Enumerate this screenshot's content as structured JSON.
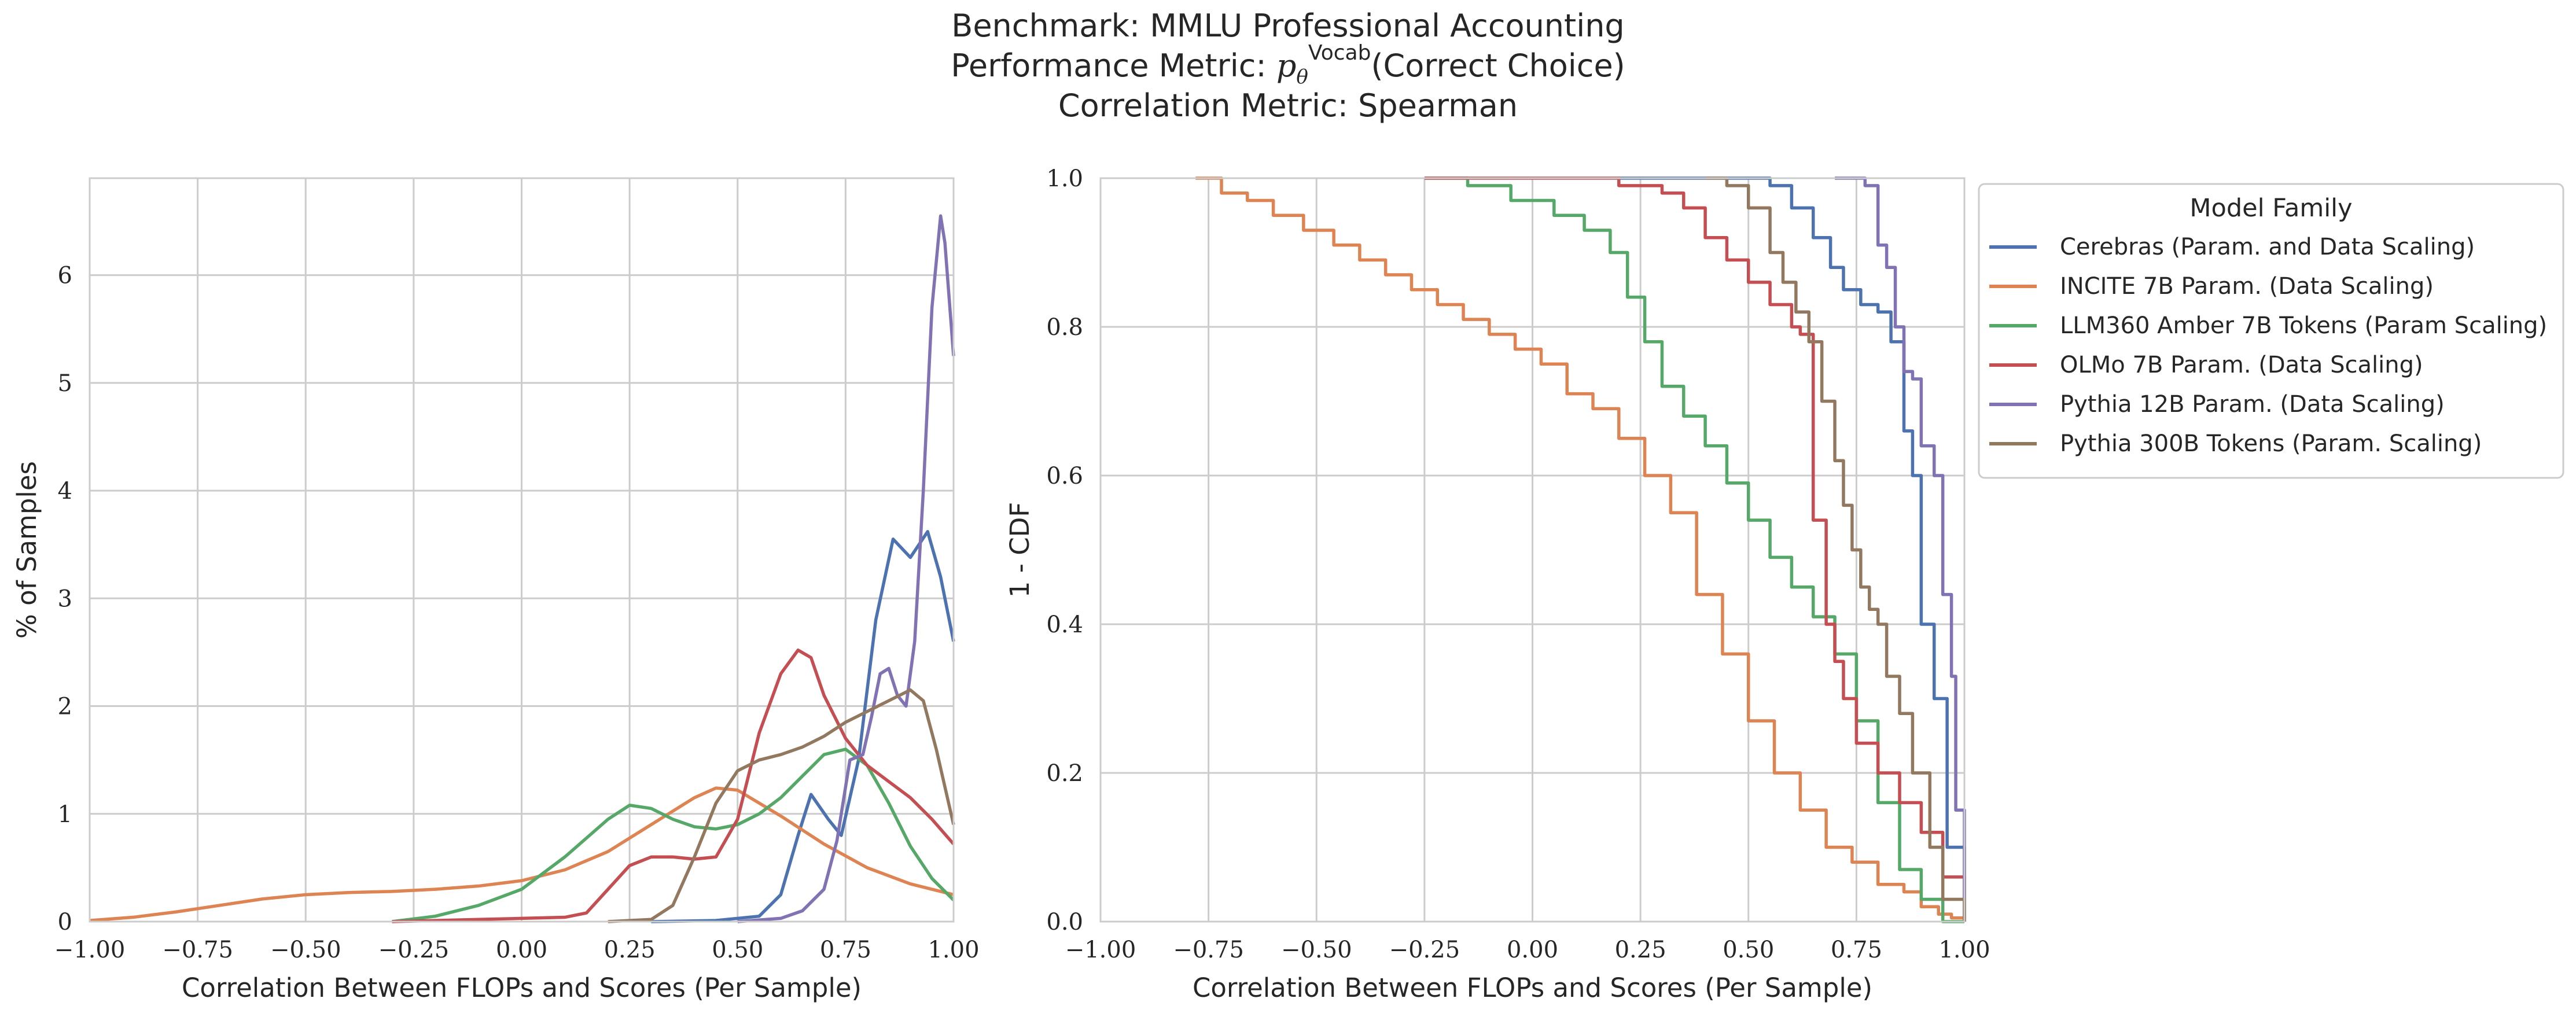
{
  "title": {
    "line1": "Benchmark: MMLU Professional Accounting",
    "line2_prefix": "Performance Metric: ",
    "line2_p": "p",
    "line2_sup": "Vocab",
    "line2_sub": "θ",
    "line2_suffix": "(Correct Choice)",
    "line3": "Correlation Metric: Spearman"
  },
  "legend": {
    "title": "Model Family",
    "placement": "outside-right"
  },
  "colors": {
    "Cerebras": "#4c72b0",
    "INCITE": "#dd8452",
    "LLM360": "#55a868",
    "OLMo": "#c44e52",
    "Pythia12B": "#8172b3",
    "Pythia300B": "#937860"
  },
  "chart_data": [
    {
      "type": "line",
      "name": "kde",
      "xlabel": "Correlation Between FLOPs and Scores (Per Sample)",
      "ylabel": "% of Samples",
      "xlim": [
        -1.0,
        1.0
      ],
      "ylim": [
        0,
        6.9
      ],
      "grid": true,
      "xticks": [
        "−1.00",
        "−0.75",
        "−0.50",
        "−0.25",
        "0.00",
        "0.25",
        "0.50",
        "0.75",
        "1.00"
      ],
      "xtick_values": [
        -1.0,
        -0.75,
        -0.5,
        -0.25,
        0.0,
        0.25,
        0.5,
        0.75,
        1.0
      ],
      "yticks": [
        "0",
        "1",
        "2",
        "3",
        "4",
        "5",
        "6"
      ],
      "ytick_values": [
        0,
        1,
        2,
        3,
        4,
        5,
        6
      ],
      "series": [
        {
          "name": "Cerebras (Param. and Data Scaling)",
          "color": "#4c72b0",
          "x": [
            0.3,
            0.45,
            0.55,
            0.6,
            0.64,
            0.67,
            0.71,
            0.74,
            0.78,
            0.82,
            0.86,
            0.9,
            0.94,
            0.97,
            1.0
          ],
          "y": [
            0.0,
            0.01,
            0.05,
            0.25,
            0.8,
            1.18,
            0.95,
            0.8,
            1.5,
            2.8,
            3.55,
            3.38,
            3.62,
            3.2,
            2.6
          ]
        },
        {
          "name": "INCITE 7B Param. (Data Scaling)",
          "color": "#dd8452",
          "x": [
            -1.0,
            -0.9,
            -0.8,
            -0.7,
            -0.6,
            -0.5,
            -0.4,
            -0.3,
            -0.2,
            -0.1,
            0.0,
            0.1,
            0.2,
            0.3,
            0.4,
            0.45,
            0.5,
            0.6,
            0.7,
            0.8,
            0.9,
            1.0
          ],
          "y": [
            0.01,
            0.04,
            0.09,
            0.15,
            0.21,
            0.25,
            0.27,
            0.28,
            0.3,
            0.33,
            0.38,
            0.48,
            0.65,
            0.9,
            1.15,
            1.24,
            1.22,
            0.98,
            0.72,
            0.5,
            0.35,
            0.25
          ]
        },
        {
          "name": "LLM360 Amber 7B Tokens (Param Scaling)",
          "color": "#55a868",
          "x": [
            -0.3,
            -0.2,
            -0.1,
            0.0,
            0.1,
            0.2,
            0.25,
            0.3,
            0.35,
            0.4,
            0.45,
            0.5,
            0.55,
            0.6,
            0.65,
            0.7,
            0.75,
            0.8,
            0.85,
            0.9,
            0.95,
            1.0
          ],
          "y": [
            0.0,
            0.05,
            0.15,
            0.3,
            0.6,
            0.95,
            1.08,
            1.05,
            0.95,
            0.88,
            0.86,
            0.9,
            1.0,
            1.15,
            1.35,
            1.55,
            1.6,
            1.45,
            1.1,
            0.7,
            0.4,
            0.2
          ]
        },
        {
          "name": "OLMo 7B Param. (Data Scaling)",
          "color": "#c44e52",
          "x": [
            -0.3,
            -0.2,
            -0.1,
            0.0,
            0.1,
            0.15,
            0.2,
            0.25,
            0.3,
            0.35,
            0.4,
            0.45,
            0.5,
            0.55,
            0.6,
            0.64,
            0.67,
            0.7,
            0.75,
            0.8,
            0.85,
            0.9,
            0.95,
            1.0
          ],
          "y": [
            0.0,
            0.01,
            0.02,
            0.03,
            0.04,
            0.08,
            0.3,
            0.52,
            0.6,
            0.6,
            0.58,
            0.6,
            0.95,
            1.75,
            2.3,
            2.52,
            2.45,
            2.1,
            1.7,
            1.45,
            1.3,
            1.15,
            0.95,
            0.72
          ]
        },
        {
          "name": "Pythia 12B Param. (Data Scaling)",
          "color": "#8172b3",
          "x": [
            0.5,
            0.6,
            0.65,
            0.7,
            0.73,
            0.76,
            0.79,
            0.81,
            0.83,
            0.85,
            0.87,
            0.89,
            0.91,
            0.93,
            0.95,
            0.97,
            0.98,
            1.0
          ],
          "y": [
            0.0,
            0.03,
            0.1,
            0.3,
            0.75,
            1.5,
            1.55,
            1.9,
            2.3,
            2.35,
            2.1,
            2.0,
            2.6,
            4.0,
            5.7,
            6.55,
            6.3,
            5.25
          ]
        },
        {
          "name": "Pythia 300B Tokens (Param. Scaling)",
          "color": "#937860",
          "x": [
            0.2,
            0.3,
            0.35,
            0.4,
            0.45,
            0.5,
            0.55,
            0.6,
            0.65,
            0.7,
            0.75,
            0.8,
            0.85,
            0.9,
            0.93,
            0.96,
            1.0
          ],
          "y": [
            0.0,
            0.02,
            0.15,
            0.6,
            1.1,
            1.4,
            1.5,
            1.55,
            1.62,
            1.72,
            1.85,
            1.95,
            2.05,
            2.15,
            2.05,
            1.6,
            0.9
          ]
        }
      ]
    },
    {
      "type": "line",
      "name": "survival-cdf",
      "xlabel": "Correlation Between FLOPs and Scores (Per Sample)",
      "ylabel": "1 - CDF",
      "xlim": [
        -1.0,
        1.0
      ],
      "ylim": [
        0.0,
        1.0
      ],
      "grid": true,
      "xticks": [
        "−1.00",
        "−0.75",
        "−0.50",
        "−0.25",
        "0.00",
        "0.25",
        "0.50",
        "0.75",
        "1.00"
      ],
      "xtick_values": [
        -1.0,
        -0.75,
        -0.5,
        -0.25,
        0.0,
        0.25,
        0.5,
        0.75,
        1.0
      ],
      "yticks": [
        "0.0",
        "0.2",
        "0.4",
        "0.6",
        "0.8",
        "1.0"
      ],
      "ytick_values": [
        0.0,
        0.2,
        0.4,
        0.6,
        0.8,
        1.0
      ],
      "series": [
        {
          "name": "Cerebras (Param. and Data Scaling)",
          "color": "#4c72b0",
          "x": [
            0.2,
            0.55,
            0.6,
            0.65,
            0.69,
            0.72,
            0.76,
            0.8,
            0.83,
            0.86,
            0.88,
            0.9,
            0.93,
            0.96,
            0.98,
            1.0
          ],
          "y": [
            1.0,
            0.99,
            0.96,
            0.92,
            0.88,
            0.85,
            0.83,
            0.82,
            0.78,
            0.66,
            0.6,
            0.4,
            0.3,
            0.1,
            0.1,
            0.0
          ]
        },
        {
          "name": "INCITE 7B Param. (Data Scaling)",
          "color": "#dd8452",
          "x": [
            -0.78,
            -0.72,
            -0.66,
            -0.6,
            -0.53,
            -0.46,
            -0.4,
            -0.34,
            -0.28,
            -0.22,
            -0.16,
            -0.1,
            -0.04,
            0.02,
            0.08,
            0.14,
            0.2,
            0.26,
            0.32,
            0.38,
            0.44,
            0.5,
            0.56,
            0.62,
            0.68,
            0.74,
            0.8,
            0.86,
            0.9,
            0.94,
            0.97,
            1.0
          ],
          "y": [
            1.0,
            0.98,
            0.97,
            0.95,
            0.93,
            0.91,
            0.89,
            0.87,
            0.85,
            0.83,
            0.81,
            0.79,
            0.77,
            0.75,
            0.71,
            0.69,
            0.65,
            0.6,
            0.55,
            0.44,
            0.36,
            0.27,
            0.2,
            0.15,
            0.1,
            0.08,
            0.05,
            0.04,
            0.02,
            0.01,
            0.005,
            0.0
          ]
        },
        {
          "name": "LLM360 Amber 7B Tokens (Param Scaling)",
          "color": "#55a868",
          "x": [
            -0.25,
            -0.15,
            -0.05,
            0.05,
            0.12,
            0.18,
            0.22,
            0.26,
            0.3,
            0.35,
            0.4,
            0.45,
            0.5,
            0.55,
            0.6,
            0.65,
            0.7,
            0.75,
            0.8,
            0.85,
            0.9,
            0.95,
            1.0
          ],
          "y": [
            1.0,
            0.99,
            0.97,
            0.95,
            0.93,
            0.9,
            0.84,
            0.78,
            0.72,
            0.68,
            0.64,
            0.59,
            0.54,
            0.49,
            0.45,
            0.41,
            0.36,
            0.27,
            0.16,
            0.07,
            0.03,
            0.0,
            0.0
          ]
        },
        {
          "name": "OLMo 7B Param. (Data Scaling)",
          "color": "#c44e52",
          "x": [
            -0.25,
            0.2,
            0.3,
            0.35,
            0.4,
            0.45,
            0.5,
            0.55,
            0.6,
            0.62,
            0.65,
            0.68,
            0.7,
            0.72,
            0.75,
            0.8,
            0.85,
            0.9,
            0.95,
            1.0
          ],
          "y": [
            1.0,
            0.99,
            0.98,
            0.96,
            0.92,
            0.89,
            0.86,
            0.83,
            0.8,
            0.79,
            0.54,
            0.4,
            0.35,
            0.3,
            0.24,
            0.2,
            0.16,
            0.12,
            0.06,
            0.0
          ]
        },
        {
          "name": "Pythia 12B Param. (Data Scaling)",
          "color": "#8172b3",
          "x": [
            0.7,
            0.77,
            0.8,
            0.82,
            0.84,
            0.86,
            0.88,
            0.9,
            0.93,
            0.95,
            0.97,
            0.98,
            1.0
          ],
          "y": [
            1.0,
            0.99,
            0.91,
            0.88,
            0.8,
            0.74,
            0.73,
            0.64,
            0.6,
            0.44,
            0.33,
            0.15,
            0.0
          ]
        },
        {
          "name": "Pythia 300B Tokens (Param. Scaling)",
          "color": "#937860",
          "x": [
            0.4,
            0.45,
            0.5,
            0.55,
            0.58,
            0.61,
            0.64,
            0.67,
            0.7,
            0.72,
            0.74,
            0.76,
            0.78,
            0.8,
            0.82,
            0.85,
            0.88,
            0.92,
            0.95,
            1.0
          ],
          "y": [
            1.0,
            0.99,
            0.96,
            0.9,
            0.86,
            0.82,
            0.78,
            0.7,
            0.62,
            0.56,
            0.5,
            0.45,
            0.42,
            0.4,
            0.33,
            0.28,
            0.2,
            0.1,
            0.03,
            0.0
          ]
        }
      ]
    }
  ]
}
